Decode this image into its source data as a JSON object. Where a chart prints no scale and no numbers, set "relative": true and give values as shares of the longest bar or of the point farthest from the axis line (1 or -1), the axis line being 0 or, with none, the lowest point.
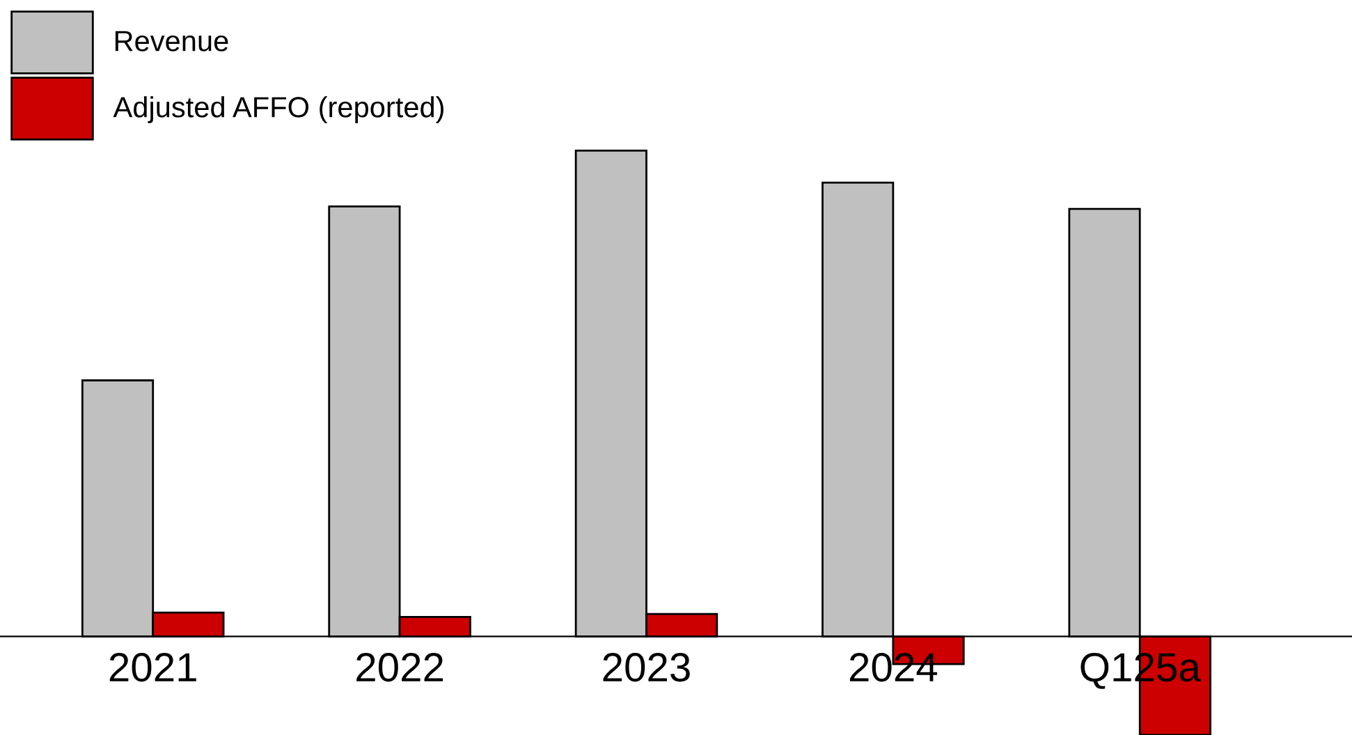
{
  "chart_data": {
    "type": "bar",
    "relative": true,
    "categories": [
      "2021",
      "2022",
      "2023",
      "2024",
      "Q125a"
    ],
    "series": [
      {
        "name": "Revenue",
        "color": "#c0c0c0",
        "values": [
          0.527,
          0.885,
          1,
          0.934,
          0.88
        ]
      },
      {
        "name": "Adjusted AFFO (reported)",
        "color": "#cc0000",
        "values": [
          0.049,
          0.04,
          0.046,
          -0.057,
          -0.203
        ]
      }
    ],
    "legend": "top left",
    "grid": false
  }
}
